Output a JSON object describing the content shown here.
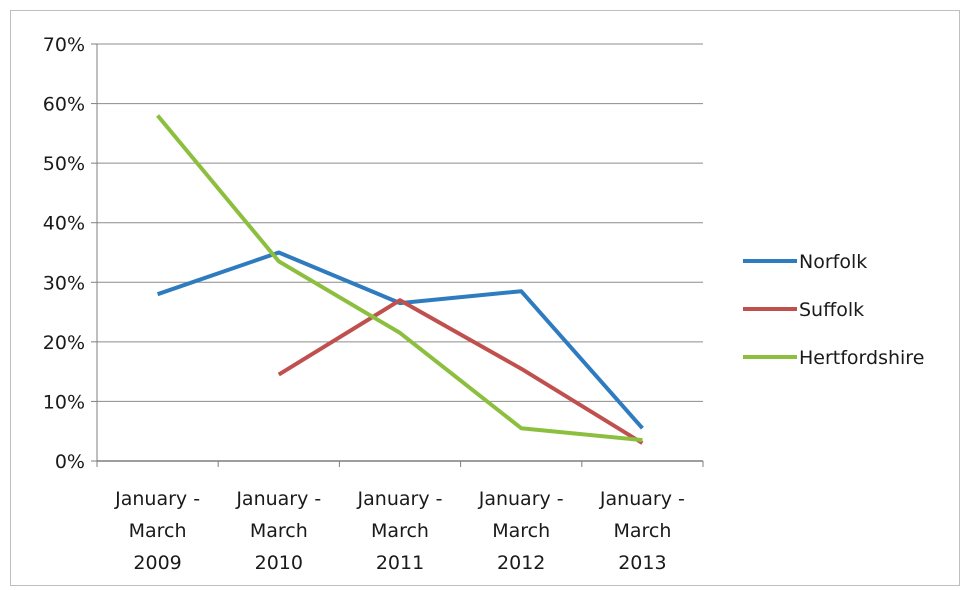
{
  "chart_data": {
    "type": "line",
    "title": "",
    "xlabel": "",
    "ylabel": "",
    "categories": [
      "January - March 2009",
      "January - March 2010",
      "January - March 2011",
      "January - March 2012",
      "January - March 2013"
    ],
    "category_lines": [
      [
        "January -",
        "March",
        "2009"
      ],
      [
        "January -",
        "March",
        "2010"
      ],
      [
        "January -",
        "March",
        "2011"
      ],
      [
        "January -",
        "March",
        "2012"
      ],
      [
        "January -",
        "March",
        "2013"
      ]
    ],
    "series": [
      {
        "name": "Norfolk",
        "color": "#2e7cbf",
        "values": [
          28,
          35,
          26.5,
          28.5,
          5.5
        ]
      },
      {
        "name": "Suffolk",
        "color": "#c0504d",
        "values": [
          null,
          14.5,
          27,
          15.5,
          3
        ]
      },
      {
        "name": "Hertfordshire",
        "color": "#8dbf3f",
        "values": [
          58,
          33.5,
          21.5,
          5.5,
          3.5
        ]
      }
    ],
    "ylim": [
      0,
      70
    ],
    "ytick_values": [
      0,
      10,
      20,
      30,
      40,
      50,
      60,
      70
    ],
    "ytick_labels": [
      "0%",
      "10%",
      "20%",
      "30%",
      "40%",
      "50%",
      "60%",
      "70%"
    ],
    "y_unit": "%",
    "grid": true,
    "legend_position": "right"
  }
}
